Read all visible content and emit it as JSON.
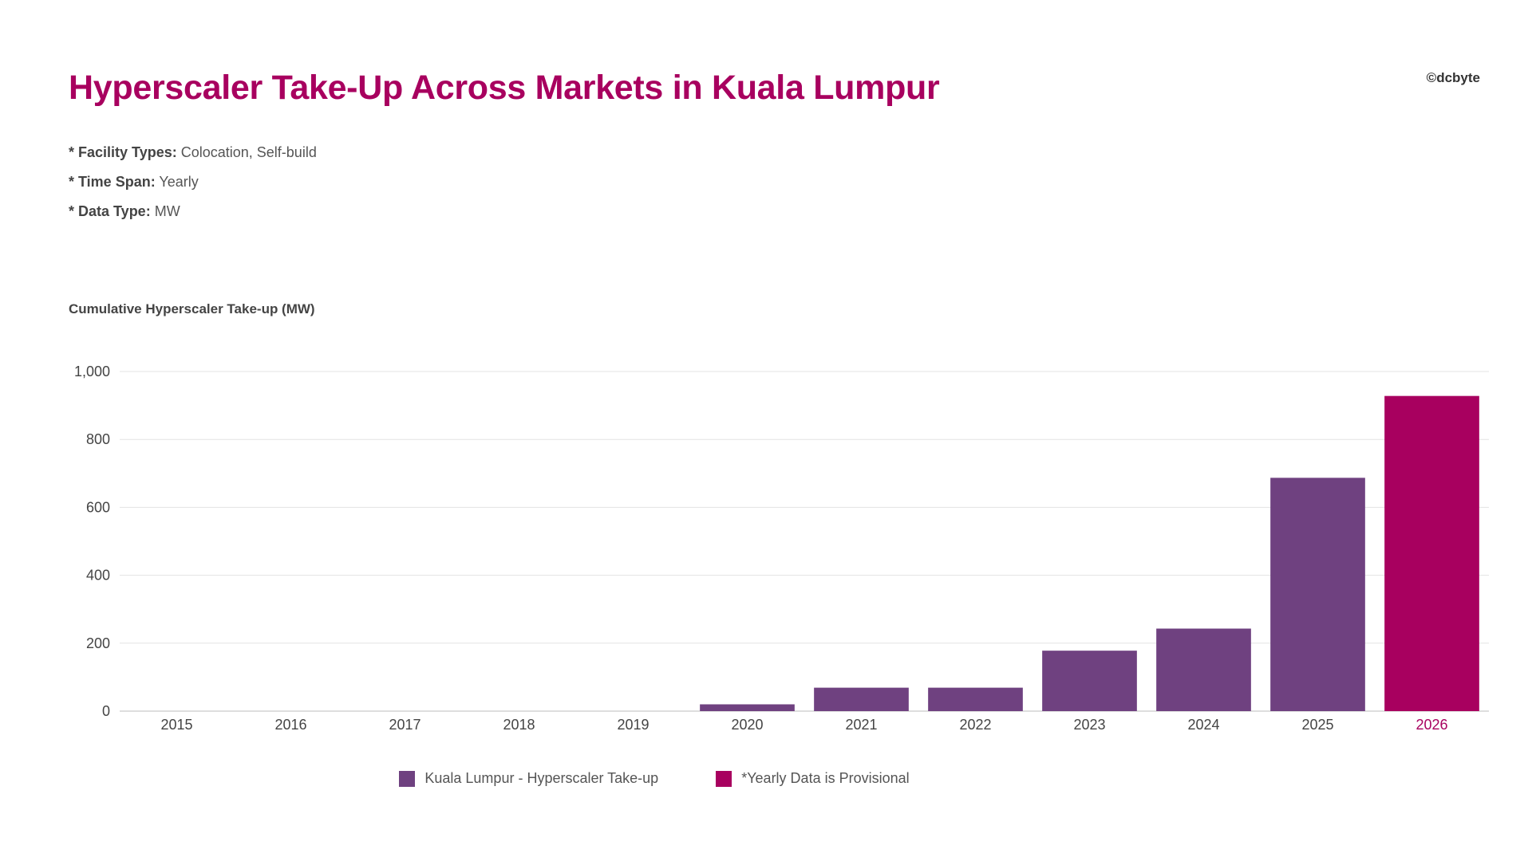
{
  "header": {
    "title": "Hyperscaler Take-Up Across Markets in Kuala Lumpur",
    "copyright": "©dcbyte"
  },
  "filters": [
    {
      "key": "* Facility Types:",
      "value": "Colocation, Self-build"
    },
    {
      "key": "* Time Span:",
      "value": "Yearly"
    },
    {
      "key": "* Data Type:",
      "value": "MW"
    }
  ],
  "legend": {
    "series_label": "Kuala Lumpur - Hyperscaler Take-up",
    "provisional_label": "*Yearly Data is Provisional"
  },
  "colors": {
    "series": "#6F4180",
    "provisional": "#A8005F",
    "title": "#A8005F",
    "grid": "#E3E3E3"
  },
  "chart_data": {
    "type": "bar",
    "ylabel": "Cumulative Hyperscaler Take-up (MW)",
    "xlabel": "",
    "categories": [
      "2015",
      "2016",
      "2017",
      "2018",
      "2019",
      "2020",
      "2021",
      "2022",
      "2023",
      "2024",
      "2025",
      "2026"
    ],
    "series": [
      {
        "name": "Kuala Lumpur - Hyperscaler Take-up",
        "values": [
          0,
          0,
          0,
          0,
          0,
          20,
          69,
          69,
          178,
          243,
          687,
          928
        ]
      }
    ],
    "provisional_categories": [
      "2026"
    ],
    "ylim": [
      0,
      1000
    ],
    "yticks": [
      0,
      200,
      400,
      600,
      800,
      1000
    ],
    "ytick_labels": [
      "0",
      "200",
      "400",
      "600",
      "800",
      "1,000"
    ],
    "grid": true,
    "legend_position": "bottom-center"
  }
}
